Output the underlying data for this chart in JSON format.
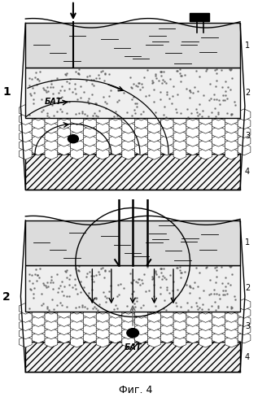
{
  "title": "Фиг. 4",
  "panel1_label": "1",
  "panel2_label": "2",
  "layer_labels": [
    "1",
    "2",
    "3",
    "4"
  ],
  "bat_text": "БАТ",
  "bg_color": "#ffffff",
  "line_color": "#000000",
  "skin_color": "#dcdcdc",
  "dotted_color": "#efefef",
  "hex_color": "#f8f8f8",
  "hatch_color": "#f5f5f5",
  "arrow_color": "#000000"
}
